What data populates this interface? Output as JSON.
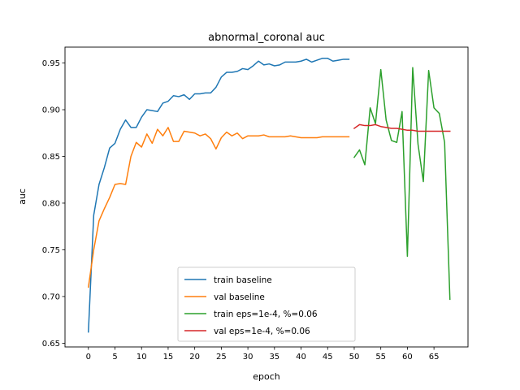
{
  "chart_data": {
    "type": "line",
    "title": "abnormal_coronal auc",
    "xlabel": "epoch",
    "ylabel": "auc",
    "xlim": [
      -4.4,
      71.4
    ],
    "ylim": [
      0.646,
      0.967
    ],
    "xticks": [
      0,
      5,
      10,
      15,
      20,
      25,
      30,
      35,
      40,
      45,
      50,
      55,
      60,
      65
    ],
    "yticks": [
      0.65,
      0.7,
      0.75,
      0.8,
      0.85,
      0.9,
      0.95
    ],
    "ytick_labels": [
      "0.65",
      "0.70",
      "0.75",
      "0.80",
      "0.85",
      "0.90",
      "0.95"
    ],
    "grid": false,
    "legend_position": "lower center",
    "series": [
      {
        "name": "train baseline",
        "color": "#1f77b4",
        "x": [
          0,
          1,
          2,
          3,
          4,
          5,
          6,
          7,
          8,
          9,
          10,
          11,
          12,
          13,
          14,
          15,
          16,
          17,
          18,
          19,
          20,
          21,
          22,
          23,
          24,
          25,
          26,
          27,
          28,
          29,
          30,
          31,
          32,
          33,
          34,
          35,
          36,
          37,
          38,
          39,
          40,
          41,
          42,
          43,
          44,
          45,
          46,
          47,
          48,
          49
        ],
        "y": [
          0.662,
          0.787,
          0.82,
          0.838,
          0.859,
          0.864,
          0.879,
          0.889,
          0.881,
          0.881,
          0.892,
          0.9,
          0.899,
          0.898,
          0.907,
          0.909,
          0.915,
          0.914,
          0.916,
          0.911,
          0.917,
          0.917,
          0.918,
          0.918,
          0.924,
          0.935,
          0.94,
          0.94,
          0.941,
          0.944,
          0.943,
          0.947,
          0.952,
          0.948,
          0.949,
          0.947,
          0.948,
          0.951,
          0.951,
          0.951,
          0.952,
          0.954,
          0.951,
          0.953,
          0.955,
          0.955,
          0.952,
          0.953,
          0.954,
          0.954
        ]
      },
      {
        "name": "val baseline",
        "color": "#ff7f0e",
        "x": [
          0,
          1,
          2,
          3,
          4,
          5,
          6,
          7,
          8,
          9,
          10,
          11,
          12,
          13,
          14,
          15,
          16,
          17,
          18,
          19,
          20,
          21,
          22,
          23,
          24,
          25,
          26,
          27,
          28,
          29,
          30,
          31,
          32,
          33,
          34,
          35,
          36,
          37,
          38,
          39,
          40,
          41,
          42,
          43,
          44,
          45,
          46,
          47,
          48,
          49
        ],
        "y": [
          0.71,
          0.75,
          0.781,
          0.794,
          0.806,
          0.82,
          0.821,
          0.82,
          0.85,
          0.865,
          0.86,
          0.874,
          0.864,
          0.879,
          0.872,
          0.881,
          0.866,
          0.866,
          0.877,
          0.876,
          0.875,
          0.872,
          0.874,
          0.869,
          0.858,
          0.87,
          0.876,
          0.872,
          0.875,
          0.869,
          0.872,
          0.872,
          0.872,
          0.873,
          0.871,
          0.871,
          0.871,
          0.871,
          0.872,
          0.871,
          0.87,
          0.87,
          0.87,
          0.87,
          0.871,
          0.871,
          0.871,
          0.871,
          0.871,
          0.871
        ]
      },
      {
        "name": "train eps=1e-4, %=0.06",
        "color": "#2ca02c",
        "x": [
          50,
          51,
          52,
          53,
          54,
          55,
          56,
          57,
          58,
          59,
          60,
          61,
          62,
          63,
          64,
          65,
          66,
          67,
          68
        ],
        "y": [
          0.849,
          0.857,
          0.841,
          0.902,
          0.885,
          0.943,
          0.889,
          0.867,
          0.865,
          0.898,
          0.743,
          0.945,
          0.863,
          0.823,
          0.942,
          0.902,
          0.896,
          0.865,
          0.697
        ]
      },
      {
        "name": "val eps=1e-4, %=0.06",
        "color": "#d62728",
        "x": [
          50,
          51,
          52,
          53,
          54,
          55,
          56,
          57,
          58,
          59,
          60,
          61,
          62,
          63,
          64,
          65,
          66,
          67,
          68
        ],
        "y": [
          0.88,
          0.884,
          0.883,
          0.883,
          0.884,
          0.882,
          0.881,
          0.88,
          0.88,
          0.879,
          0.878,
          0.878,
          0.877,
          0.877,
          0.877,
          0.877,
          0.877,
          0.877,
          0.877
        ]
      }
    ]
  }
}
